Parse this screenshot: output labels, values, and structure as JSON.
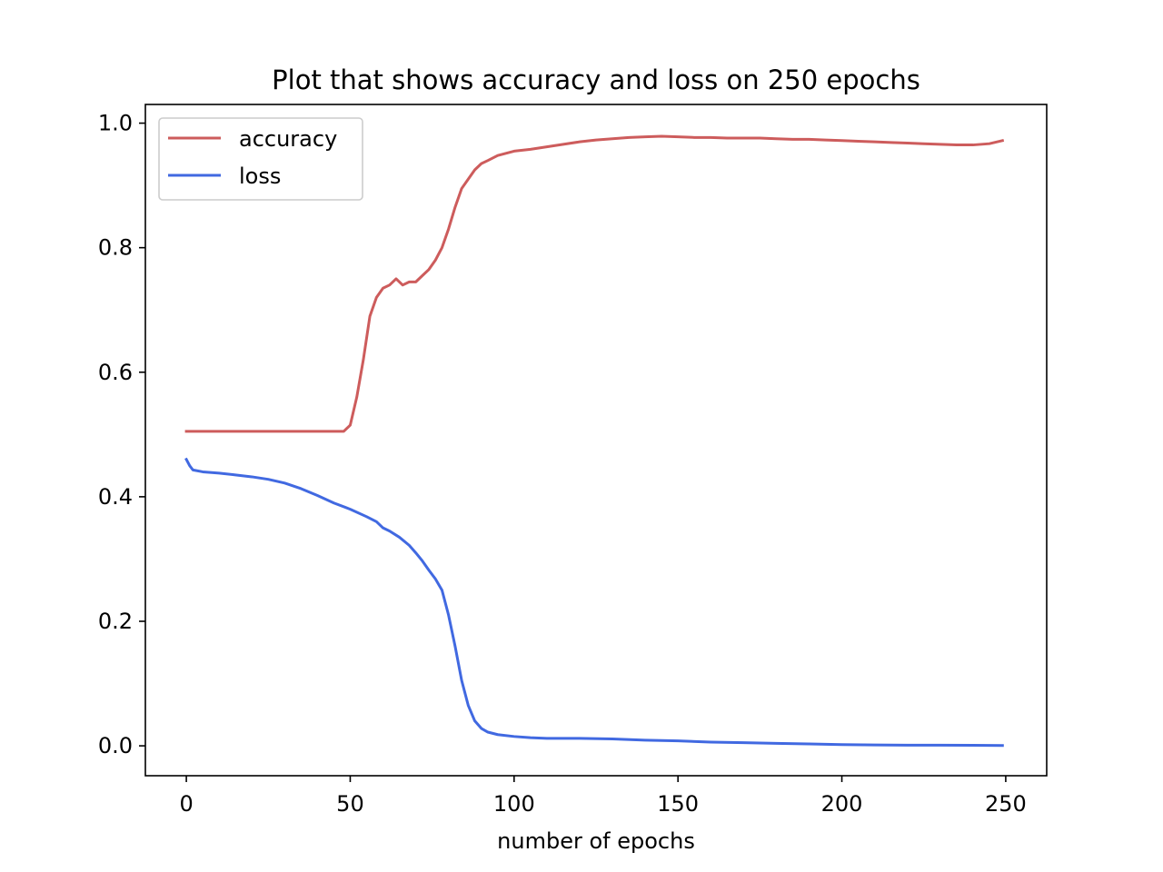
{
  "chart_data": {
    "type": "line",
    "title": "Plot that shows accuracy and loss on 250 epochs",
    "xlabel": "number of epochs",
    "ylabel": "",
    "xlim": [
      -12.5,
      262.5
    ],
    "ylim": [
      -0.048,
      1.03
    ],
    "xticks": [
      0,
      50,
      100,
      150,
      200,
      250
    ],
    "yticks": [
      0.0,
      0.2,
      0.4,
      0.6,
      0.8,
      1.0
    ],
    "xtick_labels": [
      "0",
      "50",
      "100",
      "150",
      "200",
      "250"
    ],
    "ytick_labels": [
      "0.0",
      "0.2",
      "0.4",
      "0.6",
      "0.8",
      "1.0"
    ],
    "grid": false,
    "legend_position": "top-left",
    "series": [
      {
        "name": "accuracy",
        "color": "#cd5c5c",
        "points": [
          [
            0,
            0.505
          ],
          [
            10,
            0.505
          ],
          [
            20,
            0.505
          ],
          [
            30,
            0.505
          ],
          [
            40,
            0.505
          ],
          [
            48,
            0.505
          ],
          [
            50,
            0.515
          ],
          [
            52,
            0.56
          ],
          [
            54,
            0.62
          ],
          [
            56,
            0.69
          ],
          [
            58,
            0.72
          ],
          [
            60,
            0.735
          ],
          [
            62,
            0.74
          ],
          [
            64,
            0.75
          ],
          [
            66,
            0.74
          ],
          [
            68,
            0.745
          ],
          [
            70,
            0.745
          ],
          [
            72,
            0.755
          ],
          [
            74,
            0.765
          ],
          [
            76,
            0.78
          ],
          [
            78,
            0.8
          ],
          [
            80,
            0.83
          ],
          [
            82,
            0.865
          ],
          [
            84,
            0.895
          ],
          [
            86,
            0.91
          ],
          [
            88,
            0.925
          ],
          [
            90,
            0.935
          ],
          [
            92,
            0.94
          ],
          [
            95,
            0.948
          ],
          [
            100,
            0.955
          ],
          [
            105,
            0.958
          ],
          [
            110,
            0.962
          ],
          [
            115,
            0.966
          ],
          [
            120,
            0.97
          ],
          [
            125,
            0.973
          ],
          [
            130,
            0.975
          ],
          [
            135,
            0.977
          ],
          [
            140,
            0.978
          ],
          [
            145,
            0.979
          ],
          [
            150,
            0.978
          ],
          [
            155,
            0.977
          ],
          [
            160,
            0.977
          ],
          [
            165,
            0.976
          ],
          [
            170,
            0.976
          ],
          [
            175,
            0.976
          ],
          [
            180,
            0.975
          ],
          [
            185,
            0.974
          ],
          [
            190,
            0.974
          ],
          [
            195,
            0.973
          ],
          [
            200,
            0.972
          ],
          [
            205,
            0.971
          ],
          [
            210,
            0.97
          ],
          [
            215,
            0.969
          ],
          [
            220,
            0.968
          ],
          [
            225,
            0.967
          ],
          [
            230,
            0.966
          ],
          [
            235,
            0.965
          ],
          [
            240,
            0.965
          ],
          [
            245,
            0.967
          ],
          [
            249,
            0.972
          ]
        ]
      },
      {
        "name": "loss",
        "color": "#4169e1",
        "points": [
          [
            0,
            0.46
          ],
          [
            1,
            0.45
          ],
          [
            2,
            0.443
          ],
          [
            5,
            0.44
          ],
          [
            10,
            0.438
          ],
          [
            15,
            0.435
          ],
          [
            20,
            0.432
          ],
          [
            25,
            0.428
          ],
          [
            30,
            0.422
          ],
          [
            35,
            0.413
          ],
          [
            40,
            0.402
          ],
          [
            45,
            0.39
          ],
          [
            50,
            0.38
          ],
          [
            55,
            0.368
          ],
          [
            58,
            0.36
          ],
          [
            60,
            0.35
          ],
          [
            62,
            0.345
          ],
          [
            65,
            0.335
          ],
          [
            68,
            0.322
          ],
          [
            70,
            0.31
          ],
          [
            72,
            0.297
          ],
          [
            74,
            0.282
          ],
          [
            76,
            0.268
          ],
          [
            78,
            0.25
          ],
          [
            80,
            0.21
          ],
          [
            82,
            0.16
          ],
          [
            84,
            0.105
          ],
          [
            86,
            0.065
          ],
          [
            88,
            0.04
          ],
          [
            90,
            0.028
          ],
          [
            92,
            0.022
          ],
          [
            95,
            0.018
          ],
          [
            100,
            0.015
          ],
          [
            105,
            0.013
          ],
          [
            110,
            0.012
          ],
          [
            120,
            0.012
          ],
          [
            130,
            0.011
          ],
          [
            140,
            0.009
          ],
          [
            150,
            0.008
          ],
          [
            160,
            0.006
          ],
          [
            170,
            0.005
          ],
          [
            180,
            0.004
          ],
          [
            190,
            0.003
          ],
          [
            200,
            0.002
          ],
          [
            210,
            0.0015
          ],
          [
            220,
            0.001
          ],
          [
            230,
            0.001
          ],
          [
            240,
            0.0008
          ],
          [
            249,
            0.0005
          ]
        ]
      }
    ]
  }
}
